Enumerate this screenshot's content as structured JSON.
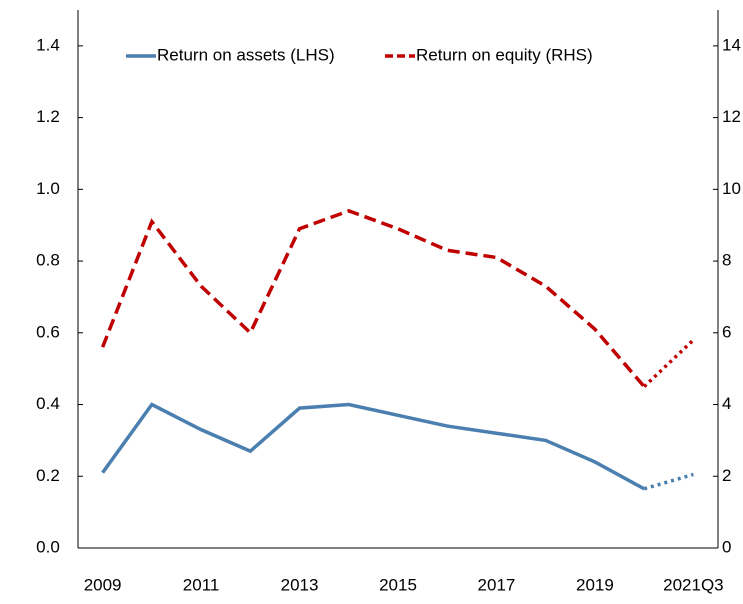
{
  "chart_data": {
    "type": "line",
    "categories": [
      "2009",
      null,
      "2011",
      null,
      "2013",
      null,
      "2015",
      null,
      "2017",
      null,
      "2019",
      null,
      "2021Q3"
    ],
    "series": [
      {
        "name": "Return on assets (LHS)",
        "color": "#4a7fb0",
        "dash": "solid",
        "axis": "y",
        "values": [
          0.21,
          0.4,
          0.33,
          0.27,
          0.39,
          0.4,
          0.37,
          0.34,
          0.32,
          0.3,
          0.24,
          0.165,
          0.205
        ]
      },
      {
        "name": "Return on equity (RHS)",
        "color": "#c00000",
        "dash": "dashed",
        "axis": "y2",
        "values": [
          5.6,
          9.1,
          7.3,
          6.0,
          8.9,
          9.4,
          8.9,
          8.3,
          8.1,
          7.3,
          6.1,
          4.5,
          5.8
        ]
      }
    ],
    "last_segment_style": "dotted",
    "ylim": [
      0,
      1.5
    ],
    "yticks": [
      {
        "value": 0,
        "label": "0.0"
      },
      0.2,
      0.4,
      0.6,
      0.8,
      {
        "value": 1,
        "label": "1.0"
      },
      1.2,
      1.4
    ],
    "y2lim": [
      0,
      15
    ],
    "y2ticks": [
      0,
      2,
      4,
      6,
      8,
      10,
      12,
      14
    ],
    "legend": "top-left"
  }
}
